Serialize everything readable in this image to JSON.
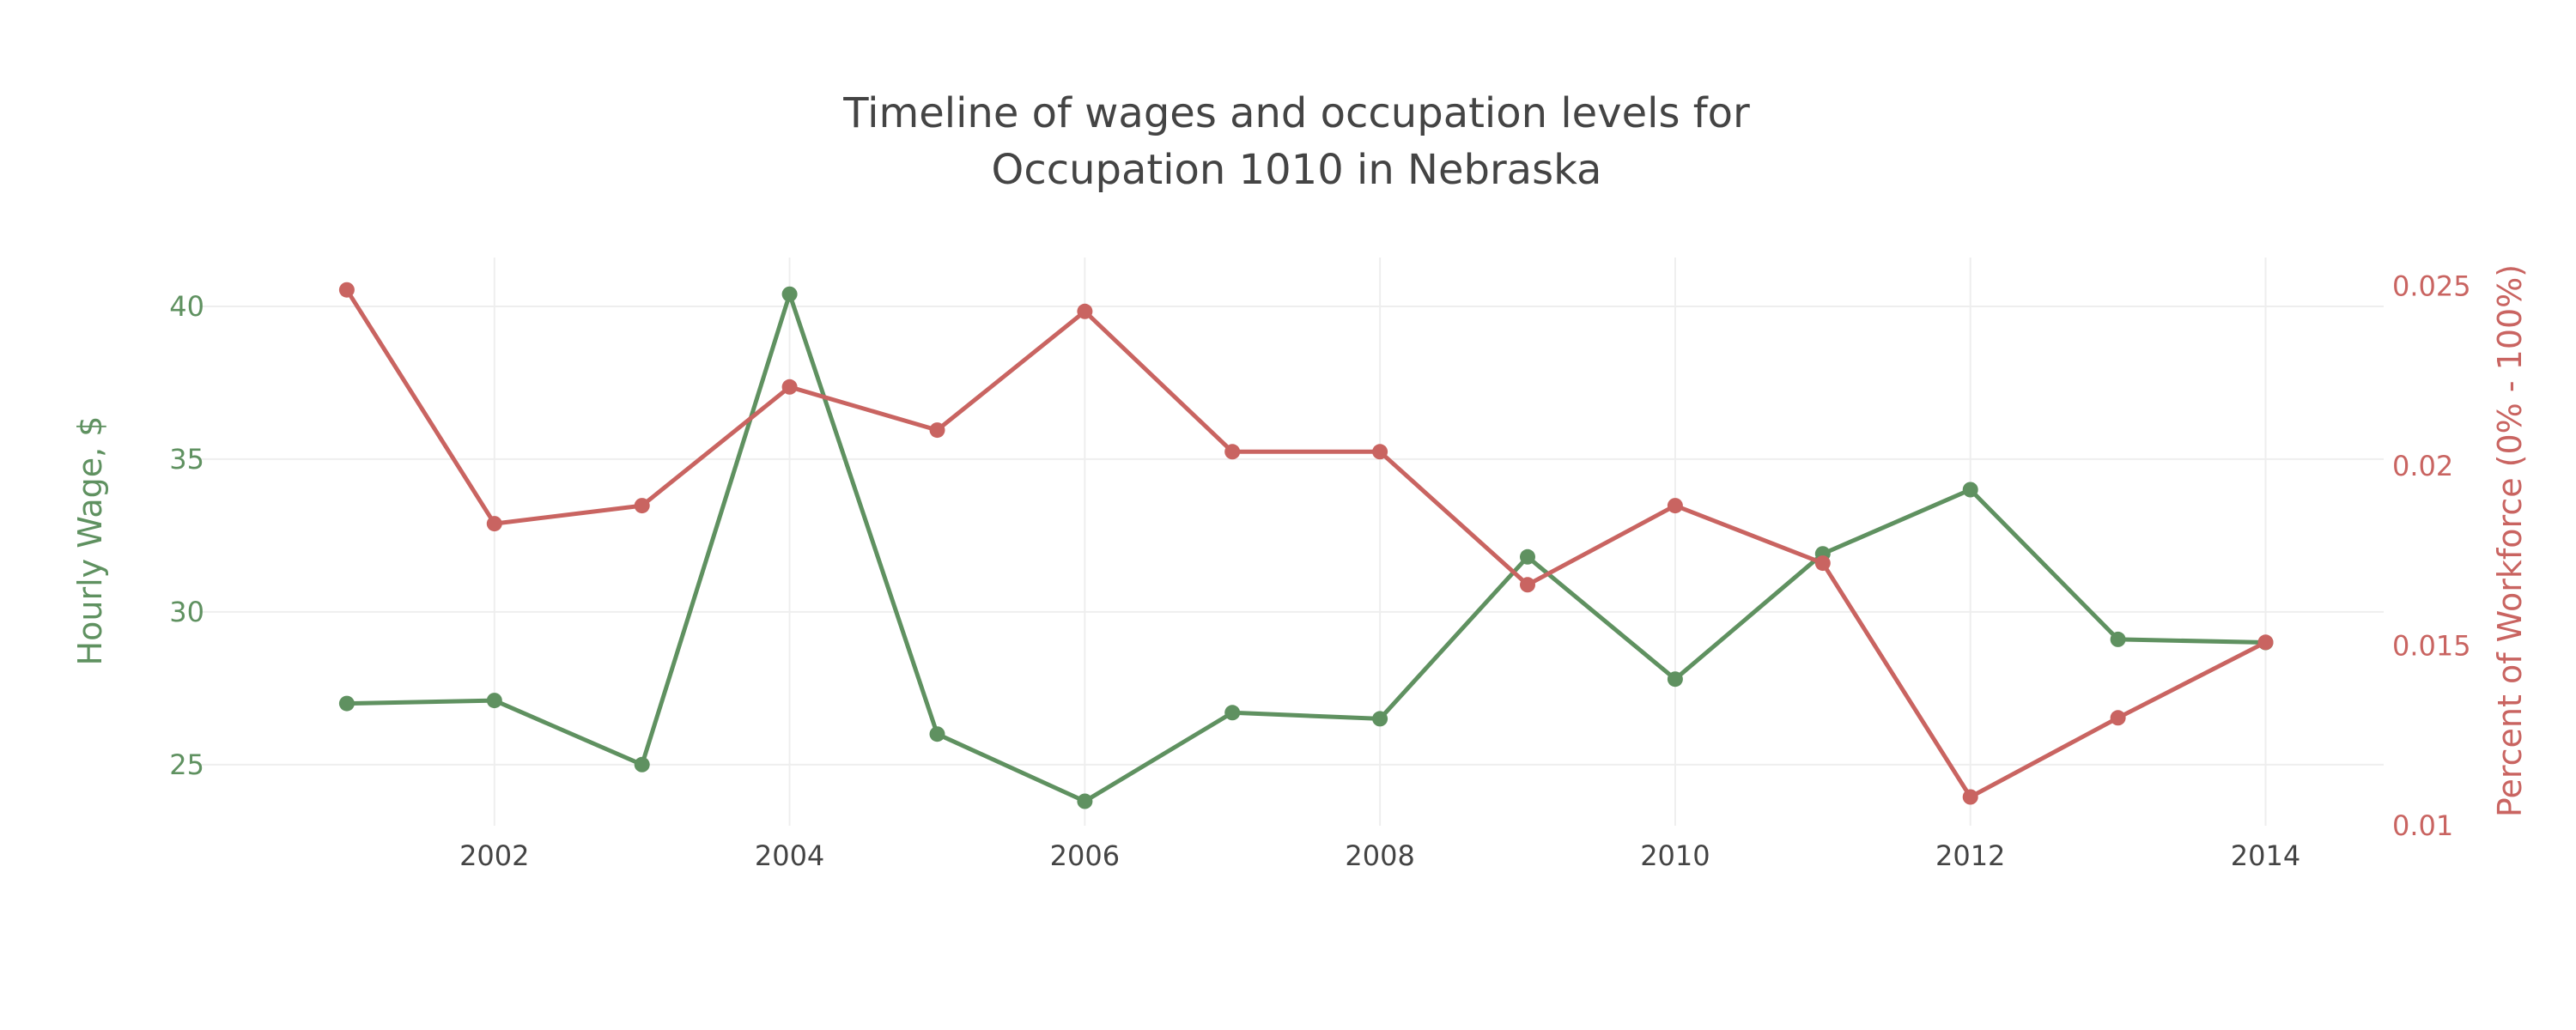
{
  "chart_data": {
    "type": "line",
    "title_lines": [
      "Timeline of wages and occupation levels for",
      "Occupation 1010 in Nebraska"
    ],
    "x": [
      2001,
      2002,
      2003,
      2004,
      2005,
      2006,
      2007,
      2008,
      2009,
      2010,
      2011,
      2012,
      2013,
      2014
    ],
    "xticks": [
      2002,
      2004,
      2006,
      2008,
      2010,
      2012,
      2014
    ],
    "xlim": [
      2000.0,
      2014.8
    ],
    "y_left": {
      "label": "Hourly Wage, $",
      "ticks": [
        25,
        30,
        35,
        40
      ],
      "ylim": [
        23.0,
        41.6
      ],
      "color": "#5f9160"
    },
    "y_right": {
      "label": "Percent of Workforce (0% - 100%)",
      "ticks": [
        0.01,
        0.015,
        0.02,
        0.025
      ],
      "tick_labels": [
        "0.01",
        "0.015",
        "0.02",
        "0.025"
      ],
      "ylim": [
        0.01,
        0.0258
      ],
      "color": "#c96461"
    },
    "series": [
      {
        "axis": "left",
        "color": "#5f9160",
        "values": [
          27.0,
          27.1,
          25.0,
          40.4,
          26.0,
          23.8,
          26.7,
          26.5,
          31.8,
          27.8,
          31.9,
          34.0,
          29.1,
          29.0
        ]
      },
      {
        "axis": "right",
        "color": "#c96461",
        "values": [
          0.0249,
          0.0184,
          0.0189,
          0.0222,
          0.021,
          0.0243,
          0.0204,
          0.0204,
          0.0167,
          0.0189,
          0.0173,
          0.0108,
          0.013,
          0.0151
        ]
      }
    ],
    "grid": true,
    "legend": "none"
  }
}
